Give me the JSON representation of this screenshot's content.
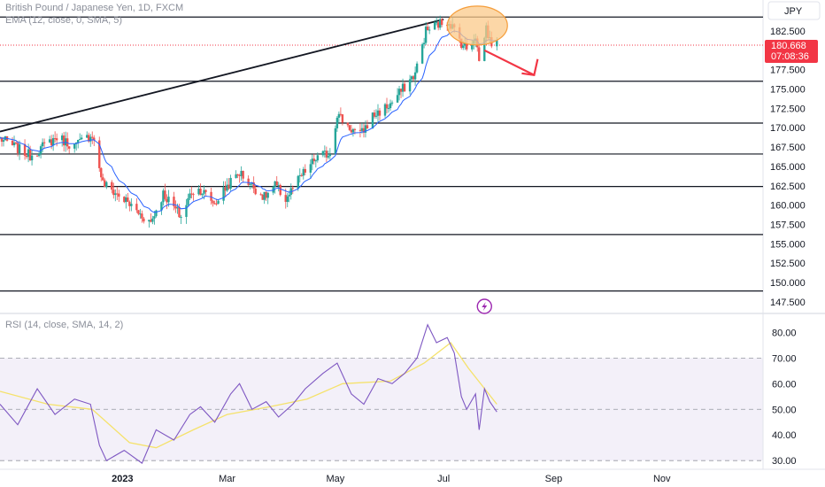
{
  "header": {
    "symbol_line": "British Pound / Japanese Yen, 1D, FXCM",
    "ema_line": "EMA (12, close, 0, SMA, 5)",
    "rsi_line": "RSI (14, close, SMA, 14, 2)",
    "currency_button": "JPY"
  },
  "price_badge": {
    "price": "180.668",
    "countdown": "07:08:36"
  },
  "colors": {
    "up": "#26a69a",
    "down": "#ef5350",
    "ema": "#2962ff",
    "rsi": "#7e57c2",
    "rsi_ma": "#f5e26b",
    "badge": "#f23645",
    "ellipse_fill": "#fbc98a",
    "ellipse_stroke": "#f59d3a",
    "arrow": "#f23645",
    "lightning": "#9c27b0"
  },
  "icons": {
    "event_marker": "lightning-icon"
  },
  "chart_data": [
    {
      "type": "candlestick",
      "price_axis": {
        "min": 146.0,
        "max": 186.5,
        "ticks": [
          "182.500",
          "180.000",
          "177.500",
          "175.000",
          "172.500",
          "170.000",
          "167.500",
          "165.000",
          "162.500",
          "160.000",
          "157.500",
          "155.000",
          "152.500",
          "150.000",
          "147.500"
        ]
      },
      "time_axis": {
        "labels": [
          {
            "label": "2023",
            "date": "2023-01-01"
          },
          {
            "label": "Mar",
            "date": "2023-03-01"
          },
          {
            "label": "May",
            "date": "2023-05-01"
          },
          {
            "label": "Jul",
            "date": "2023-07-01"
          },
          {
            "label": "Sep",
            "date": "2023-09-01"
          },
          {
            "label": "Nov",
            "date": "2023-11-01"
          }
        ],
        "range": [
          "2022-10-24",
          "2023-12-28"
        ]
      },
      "last_price": 180.668,
      "horizontal_levels": [
        184.3,
        176.0,
        170.6,
        166.6,
        162.4,
        156.2,
        148.9
      ],
      "trendline": {
        "start": {
          "date": "2022-10-24",
          "price": 169.5
        },
        "end": {
          "date": "2023-07-01",
          "price": 184.0
        }
      },
      "highlight": {
        "date": "2023-07-20",
        "price": 183.2
      },
      "projection": {
        "from": {
          "date": "2023-07-24",
          "price": 180.0
        },
        "to": {
          "date": "2023-08-21",
          "price": 176.8
        }
      },
      "event_marker_date": "2023-07-24",
      "anchors": [
        {
          "d": "2022-10-24",
          "p": 168.6
        },
        {
          "d": "2022-11-10",
          "p": 166.4
        },
        {
          "d": "2022-11-25",
          "p": 168.8
        },
        {
          "d": "2022-12-05",
          "p": 167.6
        },
        {
          "d": "2022-12-15",
          "p": 169.2
        },
        {
          "d": "2022-12-21",
          "p": 162.8
        },
        {
          "d": "2023-01-03",
          "p": 160.5
        },
        {
          "d": "2023-01-11",
          "p": 158.8
        },
        {
          "d": "2023-01-17",
          "p": 157.8
        },
        {
          "d": "2023-01-24",
          "p": 161.5
        },
        {
          "d": "2023-02-03",
          "p": 158.5
        },
        {
          "d": "2023-02-09",
          "p": 161.8
        },
        {
          "d": "2023-02-14",
          "p": 162.0
        },
        {
          "d": "2023-02-22",
          "p": 160.2
        },
        {
          "d": "2023-03-01",
          "p": 162.5
        },
        {
          "d": "2023-03-08",
          "p": 164.2
        },
        {
          "d": "2023-03-13",
          "p": 163.0
        },
        {
          "d": "2023-03-22",
          "p": 161.0
        },
        {
          "d": "2023-03-28",
          "p": 162.5
        },
        {
          "d": "2023-04-03",
          "p": 160.8
        },
        {
          "d": "2023-04-12",
          "p": 163.8
        },
        {
          "d": "2023-04-20",
          "p": 166.0
        },
        {
          "d": "2023-04-28",
          "p": 166.8
        },
        {
          "d": "2023-05-02",
          "p": 171.8
        },
        {
          "d": "2023-05-09",
          "p": 170.0
        },
        {
          "d": "2023-05-15",
          "p": 169.0
        },
        {
          "d": "2023-05-22",
          "p": 171.5
        },
        {
          "d": "2023-06-01",
          "p": 173.0
        },
        {
          "d": "2023-06-08",
          "p": 175.0
        },
        {
          "d": "2023-06-15",
          "p": 177.0
        },
        {
          "d": "2023-06-21",
          "p": 182.5
        },
        {
          "d": "2023-06-28",
          "p": 183.4
        },
        {
          "d": "2023-07-04",
          "p": 183.8
        },
        {
          "d": "2023-07-11",
          "p": 181.0
        },
        {
          "d": "2023-07-14",
          "p": 180.2
        },
        {
          "d": "2023-07-19",
          "p": 182.0
        },
        {
          "d": "2023-07-21",
          "p": 178.5
        },
        {
          "d": "2023-07-25",
          "p": 183.0
        },
        {
          "d": "2023-07-27",
          "p": 181.2
        },
        {
          "d": "2023-07-31",
          "p": 180.668
        }
      ]
    },
    {
      "type": "line",
      "name": "RSI",
      "y_axis": {
        "min": 28.0,
        "max": 86.0,
        "ticks": [
          "80.00",
          "70.00",
          "60.00",
          "50.00",
          "40.00",
          "30.00"
        ]
      },
      "band": [
        30,
        70
      ],
      "midline": 50,
      "rsi_points": [
        {
          "d": "2022-10-24",
          "v": 52
        },
        {
          "d": "2022-11-03",
          "v": 44
        },
        {
          "d": "2022-11-14",
          "v": 58
        },
        {
          "d": "2022-11-24",
          "v": 48
        },
        {
          "d": "2022-12-05",
          "v": 54
        },
        {
          "d": "2022-12-14",
          "v": 52
        },
        {
          "d": "2022-12-19",
          "v": 36
        },
        {
          "d": "2022-12-23",
          "v": 30
        },
        {
          "d": "2023-01-02",
          "v": 34
        },
        {
          "d": "2023-01-12",
          "v": 29
        },
        {
          "d": "2023-01-20",
          "v": 42
        },
        {
          "d": "2023-01-30",
          "v": 38
        },
        {
          "d": "2023-02-08",
          "v": 48
        },
        {
          "d": "2023-02-14",
          "v": 51
        },
        {
          "d": "2023-02-22",
          "v": 45
        },
        {
          "d": "2023-03-03",
          "v": 56
        },
        {
          "d": "2023-03-08",
          "v": 60
        },
        {
          "d": "2023-03-15",
          "v": 50
        },
        {
          "d": "2023-03-23",
          "v": 53
        },
        {
          "d": "2023-03-30",
          "v": 47
        },
        {
          "d": "2023-04-07",
          "v": 52
        },
        {
          "d": "2023-04-14",
          "v": 58
        },
        {
          "d": "2023-04-24",
          "v": 64
        },
        {
          "d": "2023-05-02",
          "v": 68
        },
        {
          "d": "2023-05-10",
          "v": 56
        },
        {
          "d": "2023-05-17",
          "v": 52
        },
        {
          "d": "2023-05-25",
          "v": 62
        },
        {
          "d": "2023-06-02",
          "v": 60
        },
        {
          "d": "2023-06-09",
          "v": 64
        },
        {
          "d": "2023-06-16",
          "v": 70
        },
        {
          "d": "2023-06-22",
          "v": 83
        },
        {
          "d": "2023-06-27",
          "v": 76
        },
        {
          "d": "2023-07-03",
          "v": 78
        },
        {
          "d": "2023-07-07",
          "v": 72
        },
        {
          "d": "2023-07-11",
          "v": 55
        },
        {
          "d": "2023-07-14",
          "v": 50
        },
        {
          "d": "2023-07-19",
          "v": 56
        },
        {
          "d": "2023-07-21",
          "v": 42
        },
        {
          "d": "2023-07-24",
          "v": 58
        },
        {
          "d": "2023-07-27",
          "v": 53
        },
        {
          "d": "2023-07-31",
          "v": 49
        }
      ],
      "ma_points": [
        {
          "d": "2022-10-24",
          "v": 57
        },
        {
          "d": "2022-11-20",
          "v": 52
        },
        {
          "d": "2022-12-15",
          "v": 50
        },
        {
          "d": "2023-01-05",
          "v": 37
        },
        {
          "d": "2023-01-20",
          "v": 35
        },
        {
          "d": "2023-02-10",
          "v": 42
        },
        {
          "d": "2023-03-01",
          "v": 48
        },
        {
          "d": "2023-03-25",
          "v": 51
        },
        {
          "d": "2023-04-15",
          "v": 54
        },
        {
          "d": "2023-05-05",
          "v": 60
        },
        {
          "d": "2023-06-01",
          "v": 61
        },
        {
          "d": "2023-06-20",
          "v": 68
        },
        {
          "d": "2023-07-05",
          "v": 76
        },
        {
          "d": "2023-07-15",
          "v": 66
        },
        {
          "d": "2023-07-31",
          "v": 52
        }
      ]
    }
  ]
}
